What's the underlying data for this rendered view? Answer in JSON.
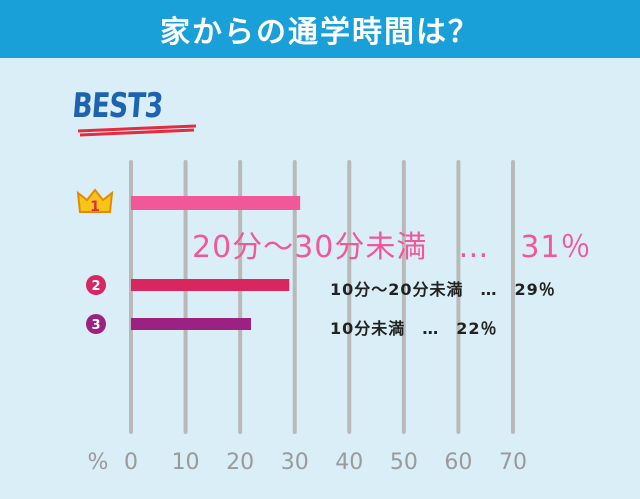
{
  "header": {
    "title": "家からの通学時間は？"
  },
  "badge": {
    "text": "BEST3"
  },
  "colors": {
    "header_bg": "#1aa0d8",
    "bg": "#d9eef7",
    "rank1": "#f0589a",
    "rank2": "#d8265e",
    "rank3": "#9b2282",
    "grid": "#b9b9b9",
    "tick": "#9a9a9a"
  },
  "chart_data": {
    "type": "bar",
    "orientation": "horizontal",
    "categories": [
      "20分～30分未満",
      "10分～20分未満",
      "10分未満"
    ],
    "ranks": [
      "1",
      "2",
      "3"
    ],
    "values": [
      31,
      29,
      22
    ],
    "data_labels": [
      "20分～30分未満　…　31％",
      "10分～20分未満　…　29％",
      "10分未満　…　22％"
    ],
    "xlabel": "%",
    "xticks": [
      0,
      10,
      20,
      30,
      40,
      50,
      60,
      70
    ],
    "xlim": [
      0,
      70
    ],
    "grid": true
  }
}
